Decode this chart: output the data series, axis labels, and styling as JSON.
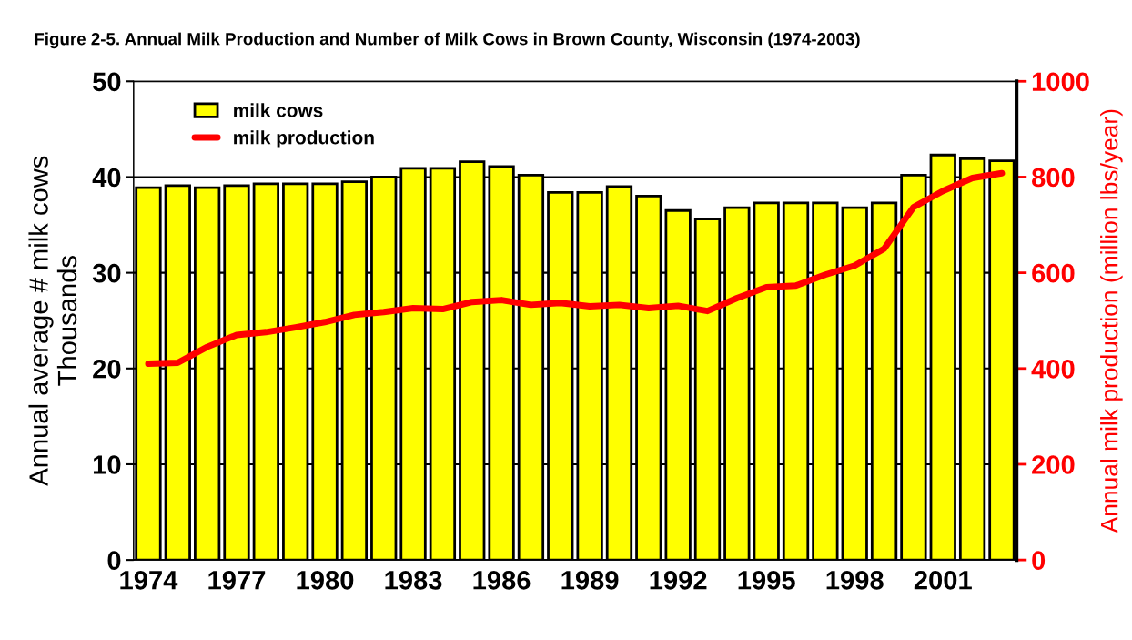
{
  "chart_data": {
    "type": "bar",
    "title": "Figure 2-5. Annual Milk Production and Number of Milk Cows in Brown County, Wisconsin (1974-2003)",
    "ylabel": "Annual average # milk cows\nThousands",
    "y2label": "Annual milk production (million lbs/year)",
    "categories": [
      "1974",
      null,
      null,
      "1977",
      null,
      null,
      "1980",
      null,
      null,
      "1983",
      null,
      null,
      "1986",
      null,
      null,
      "1989",
      null,
      null,
      "1992",
      null,
      null,
      "1995",
      null,
      null,
      "1998",
      null,
      null,
      "2001",
      null,
      null
    ],
    "series": [
      {
        "name": "milk cows",
        "color": "#ffff00",
        "values": [
          38.9,
          39.1,
          38.9,
          39.1,
          39.3,
          39.3,
          39.3,
          39.5,
          40.0,
          40.9,
          40.9,
          41.6,
          41.1,
          40.2,
          38.4,
          38.4,
          39.0,
          38.0,
          36.5,
          35.6,
          36.8,
          37.3,
          37.3,
          37.3,
          36.8,
          37.3,
          40.2,
          42.3,
          41.9,
          41.7
        ]
      },
      {
        "name": "milk production",
        "type": "line",
        "axis": "y2",
        "color": "#ff0000",
        "values": [
          410,
          412,
          445,
          470,
          476,
          486,
          497,
          512,
          518,
          526,
          524,
          539,
          543,
          533,
          537,
          530,
          533,
          526,
          531,
          520,
          547,
          570,
          573,
          596,
          615,
          650,
          737,
          771,
          798,
          808
        ]
      }
    ],
    "ylim": [
      0,
      50
    ],
    "yticks": [
      0,
      10,
      20,
      30,
      40,
      50
    ],
    "y2lim": [
      0,
      1000
    ],
    "y2ticks": [
      0,
      200,
      400,
      600,
      800,
      1000
    ],
    "grid": "y",
    "legend": "top left"
  }
}
